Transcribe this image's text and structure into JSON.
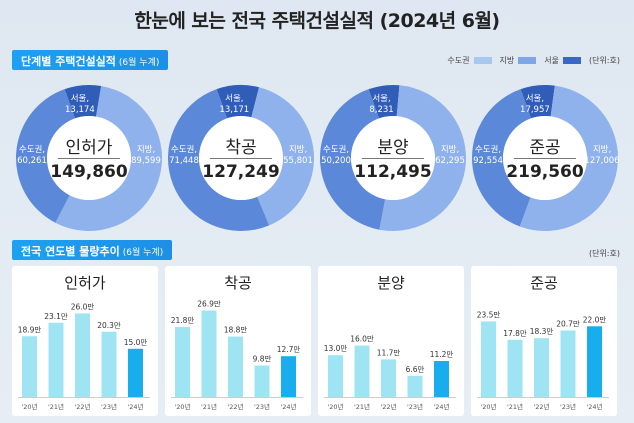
{
  "title": "한눈에 보는 전국 주택건설실적 (2024년 6월)",
  "section1": {
    "label": "단계별 주택건설실적",
    "sub": "(6월 누계)"
  },
  "section2": {
    "label": "전국 연도별 물량추이",
    "sub": "(6월 누계)"
  },
  "legend": {
    "items": [
      {
        "name": "수도권",
        "color": "#a9c8ef"
      },
      {
        "name": "지방",
        "color": "#7fa6e4"
      },
      {
        "name": "서울",
        "color": "#3a66c4"
      }
    ],
    "unit": "(단위:호)"
  },
  "unit2": "(단위:호)",
  "colors": {
    "capital": "#5b88d8",
    "local": "#8fb1ec",
    "seoul": "#2f5db8"
  },
  "chart_data": [
    {
      "type": "pie",
      "title": "인허가",
      "total": "149,860",
      "slices": [
        {
          "name": "서울,",
          "value": 13174,
          "label": "13,174"
        },
        {
          "name": "지방,",
          "value": 89599,
          "label": "89,599"
        },
        {
          "name": "수도권,",
          "value": 60261,
          "label": "60,261"
        }
      ]
    },
    {
      "type": "pie",
      "title": "착공",
      "total": "127,249",
      "slices": [
        {
          "name": "서울,",
          "value": 13171,
          "label": "13,171"
        },
        {
          "name": "지방,",
          "value": 55801,
          "label": "55,801"
        },
        {
          "name": "수도권,",
          "value": 71448,
          "label": "71,448"
        }
      ]
    },
    {
      "type": "pie",
      "title": "분양",
      "total": "112,495",
      "slices": [
        {
          "name": "서울,",
          "value": 8231,
          "label": "8,231"
        },
        {
          "name": "지방,",
          "value": 62295,
          "label": "62,295"
        },
        {
          "name": "수도권,",
          "value": 50200,
          "label": "50,200"
        }
      ]
    },
    {
      "type": "pie",
      "title": "준공",
      "total": "219,560",
      "slices": [
        {
          "name": "서울,",
          "value": 17957,
          "label": "17,957"
        },
        {
          "name": "지방,",
          "value": 127006,
          "label": "127,006"
        },
        {
          "name": "수도권,",
          "value": 92554,
          "label": "92,554"
        }
      ]
    },
    {
      "type": "bar",
      "title": "인허가",
      "categories": [
        "'20년",
        "'21년",
        "'22년",
        "'23년",
        "'24년"
      ],
      "values": [
        18.9,
        23.1,
        26.0,
        20.3,
        15.0
      ],
      "labels": [
        "18.9만",
        "23.1만",
        "26.0만",
        "20.3만",
        "15.0만"
      ]
    },
    {
      "type": "bar",
      "title": "착공",
      "categories": [
        "'20년",
        "'21년",
        "'22년",
        "'23년",
        "'24년"
      ],
      "values": [
        21.8,
        26.9,
        18.8,
        9.8,
        12.7
      ],
      "labels": [
        "21.8만",
        "26.9만",
        "18.8만",
        "9.8만",
        "12.7만"
      ]
    },
    {
      "type": "bar",
      "title": "분양",
      "categories": [
        "'20년",
        "'21년",
        "'22년",
        "'23년",
        "'24년"
      ],
      "values": [
        13.0,
        16.0,
        11.7,
        6.6,
        11.2
      ],
      "labels": [
        "13.0만",
        "16.0만",
        "11.7만",
        "6.6만",
        "11.2만"
      ]
    },
    {
      "type": "bar",
      "title": "준공",
      "categories": [
        "'20년",
        "'21년",
        "'22년",
        "'23년",
        "'24년"
      ],
      "values": [
        23.5,
        17.8,
        18.3,
        20.7,
        22.0
      ],
      "labels": [
        "23.5만",
        "17.8만",
        "18.3만",
        "20.7만",
        "22.0만"
      ]
    }
  ]
}
